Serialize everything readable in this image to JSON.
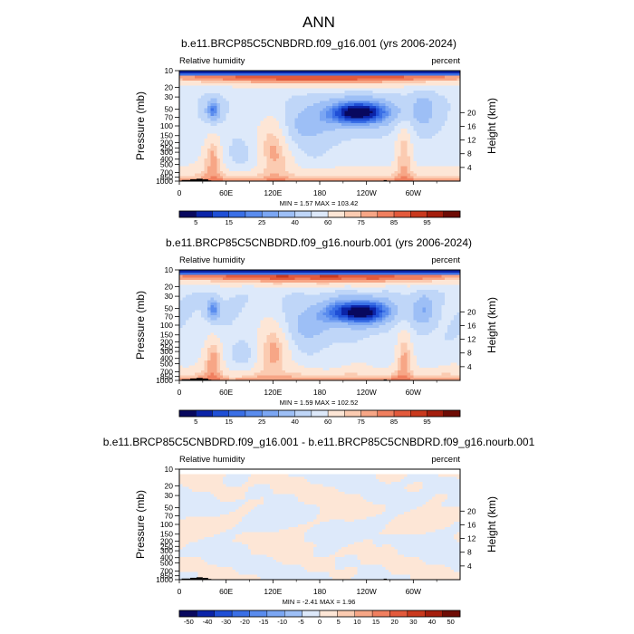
{
  "figure_title": "ANN",
  "chart_data": [
    {
      "type": "heatmap",
      "title": "b.e11.BRCP85C5CNBDRD.f09_g16.001 (yrs 2006-2024)",
      "left_label": "Relative humidity",
      "right_label": "percent",
      "ylabel": "Pressure (mb)",
      "ylabel_right": "Height (km)",
      "xticks": [
        "0",
        "60E",
        "120E",
        "180",
        "120W",
        "60W"
      ],
      "yticks": [
        "10",
        "20",
        "30",
        "50",
        "70",
        "100",
        "150",
        "200",
        "250",
        "300",
        "400",
        "500",
        "700",
        "850",
        "1000"
      ],
      "yticks_right": [
        "20",
        "16",
        "12",
        "8",
        "4"
      ],
      "stats": "MIN =    1.57   MAX =  103.42",
      "colorbar_labels": [
        "5",
        "15",
        "25",
        "40",
        "60",
        "75",
        "85",
        "95"
      ],
      "colorbar_levels": [
        "0",
        "5",
        "10",
        "15",
        "20",
        "25",
        "30",
        "40",
        "50",
        "60",
        "70",
        "75",
        "80",
        "85",
        "90",
        "95",
        "100"
      ],
      "colorbar_colors": [
        "#08085f",
        "#0b24a8",
        "#1f4fd6",
        "#3a6fe6",
        "#5a8cee",
        "#7ba6f3",
        "#9dbff6",
        "#bfd6f8",
        "#dde9fa",
        "#fde6d6",
        "#fbcbb1",
        "#f7a686",
        "#f07f5f",
        "#e35a3c",
        "#c9391e",
        "#a41e0d",
        "#6e0c05"
      ]
    },
    {
      "type": "heatmap",
      "title": "b.e11.BRCP85C5CNBDRD.f09_g16.nourb.001 (yrs 2006-2024)",
      "left_label": "Relative humidity",
      "right_label": "percent",
      "ylabel": "Pressure (mb)",
      "ylabel_right": "Height (km)",
      "xticks": [
        "0",
        "60E",
        "120E",
        "180",
        "120W",
        "60W"
      ],
      "yticks": [
        "10",
        "20",
        "30",
        "50",
        "70",
        "100",
        "150",
        "200",
        "250",
        "300",
        "400",
        "500",
        "700",
        "850",
        "1000"
      ],
      "yticks_right": [
        "20",
        "16",
        "12",
        "8",
        "4"
      ],
      "stats": "MIN =    1.59   MAX =  102.52",
      "colorbar_labels": [
        "5",
        "15",
        "25",
        "40",
        "60",
        "75",
        "85",
        "95"
      ],
      "colorbar_levels": [
        "0",
        "5",
        "10",
        "15",
        "20",
        "25",
        "30",
        "40",
        "50",
        "60",
        "70",
        "75",
        "80",
        "85",
        "90",
        "95",
        "100"
      ],
      "colorbar_colors": [
        "#08085f",
        "#0b24a8",
        "#1f4fd6",
        "#3a6fe6",
        "#5a8cee",
        "#7ba6f3",
        "#9dbff6",
        "#bfd6f8",
        "#dde9fa",
        "#fde6d6",
        "#fbcbb1",
        "#f7a686",
        "#f07f5f",
        "#e35a3c",
        "#c9391e",
        "#a41e0d",
        "#6e0c05"
      ]
    },
    {
      "type": "heatmap",
      "title": "b.e11.BRCP85C5CNBDRD.f09_g16.001 - b.e11.BRCP85C5CNBDRD.f09_g16.nourb.001",
      "left_label": "Relative humidity",
      "right_label": "percent",
      "ylabel": "Pressure (mb)",
      "ylabel_right": "Height (km)",
      "xticks": [
        "0",
        "60E",
        "120E",
        "180",
        "120W",
        "60W"
      ],
      "yticks": [
        "10",
        "20",
        "30",
        "50",
        "70",
        "100",
        "150",
        "200",
        "250",
        "300",
        "400",
        "500",
        "700",
        "850",
        "1000"
      ],
      "yticks_right": [
        "20",
        "16",
        "12",
        "8",
        "4"
      ],
      "stats": "MIN =   -2.41   MAX =    1.96",
      "colorbar_labels": [
        "-50",
        "-40",
        "-30",
        "-20",
        "-15",
        "-10",
        "-5",
        "0",
        "5",
        "10",
        "15",
        "20",
        "30",
        "40",
        "50"
      ],
      "colorbar_colors": [
        "#08085f",
        "#0b24a8",
        "#1f4fd6",
        "#3a6fe6",
        "#5a8cee",
        "#7ba6f3",
        "#9dbff6",
        "#dde9fa",
        "#fde6d6",
        "#fbcbb1",
        "#f7a686",
        "#f07f5f",
        "#e35a3c",
        "#c9391e",
        "#a41e0d",
        "#6e0c05"
      ]
    }
  ]
}
